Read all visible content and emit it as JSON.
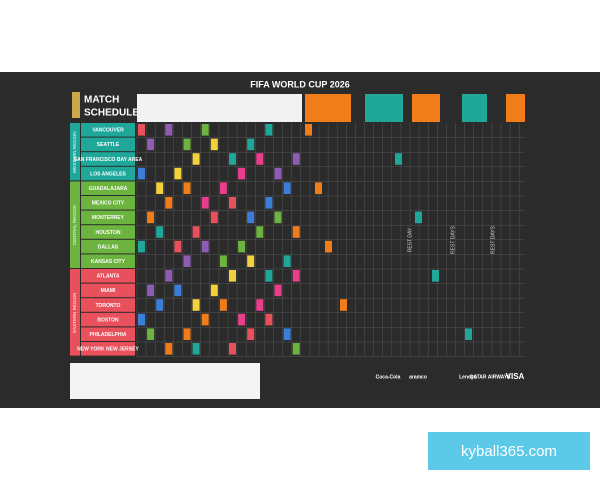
{
  "header": {
    "title": "FIFA WORLD CUP 2026",
    "subtitle_1": "MATCH",
    "subtitle_2": "SCHEDULE"
  },
  "regions": [
    {
      "label": "WESTERN REGION",
      "cities": [
        "VANCOUVER",
        "SEATTLE",
        "SAN FRANCISCO BAY AREA",
        "LOS ANGELES"
      ]
    },
    {
      "label": "CENTRAL REGION",
      "cities": [
        "GUADALAJARA",
        "MEXICO CITY",
        "MONTERREY",
        "HOUSTON",
        "DALLAS",
        "KANSAS CITY"
      ]
    },
    {
      "label": "EASTERN REGION",
      "cities": [
        "ATLANTA",
        "MIAMI",
        "TORONTO",
        "BOSTON",
        "PHILADELPHIA",
        "NEW YORK NEW JERSEY"
      ]
    }
  ],
  "rest_days": [
    "REST DAY",
    "REST DAYS",
    "REST DAYS"
  ],
  "sponsors": [
    "Coca-Cola",
    "aramco",
    "Lenovo",
    "QATAR AIRWAYS",
    "VISA"
  ],
  "watermark": "kyball365.com"
}
